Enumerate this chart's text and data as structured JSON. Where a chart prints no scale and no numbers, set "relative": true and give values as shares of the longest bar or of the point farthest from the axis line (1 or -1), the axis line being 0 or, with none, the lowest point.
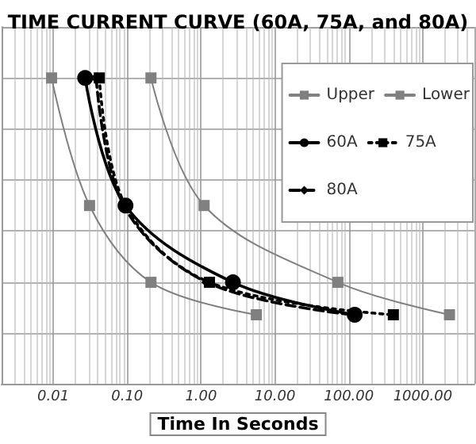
{
  "chart_data": {
    "type": "line",
    "title": "TIME CURRENT CURVE (60A, 75A, and 80A)",
    "xlabel": "Time In Seconds",
    "relative": true,
    "log": "x",
    "grid": true,
    "legend": "top right",
    "xlim": [
      0.002,
      5000
    ],
    "xticks": [
      {
        "value": 0.01,
        "label": "0.01"
      },
      {
        "value": 0.1,
        "label": "0.10"
      },
      {
        "value": 1,
        "label": "1.00"
      },
      {
        "value": 10,
        "label": "10.00"
      },
      {
        "value": 100,
        "label": "100.00"
      },
      {
        "value": 1000,
        "label": "1000.00"
      }
    ],
    "series": [
      {
        "name": "Upper",
        "color": "#808080",
        "marker": "square",
        "line_style": "solid",
        "x": [
          0.21,
          1.1,
          71,
          2300
        ],
        "values": [
          1,
          0.583,
          0.332,
          0.226
        ]
      },
      {
        "name": "Lower",
        "color": "#808080",
        "marker": "square",
        "line_style": "solid",
        "x": [
          0.0095,
          0.031,
          0.21,
          5.6
        ],
        "values": [
          1,
          0.583,
          0.332,
          0.226
        ]
      },
      {
        "name": "60A",
        "color": "#000000",
        "marker": "circle",
        "line_style": "solid",
        "x": [
          0.027,
          0.095,
          2.7,
          120
        ],
        "values": [
          1,
          0.583,
          0.332,
          0.226
        ]
      },
      {
        "name": "75A",
        "color": "#000000",
        "marker": "square",
        "line_style": "dotted",
        "x": [
          0.042,
          0.095,
          1.3,
          400
        ],
        "values": [
          1,
          0.583,
          0.332,
          0.226
        ]
      },
      {
        "name": "80A",
        "color": "#000000",
        "marker": "diamond",
        "line_style": "dashed",
        "x": [
          0.038,
          0.09,
          1.2,
          110
        ],
        "values": [
          1,
          0.583,
          0.332,
          0.226
        ]
      }
    ]
  }
}
